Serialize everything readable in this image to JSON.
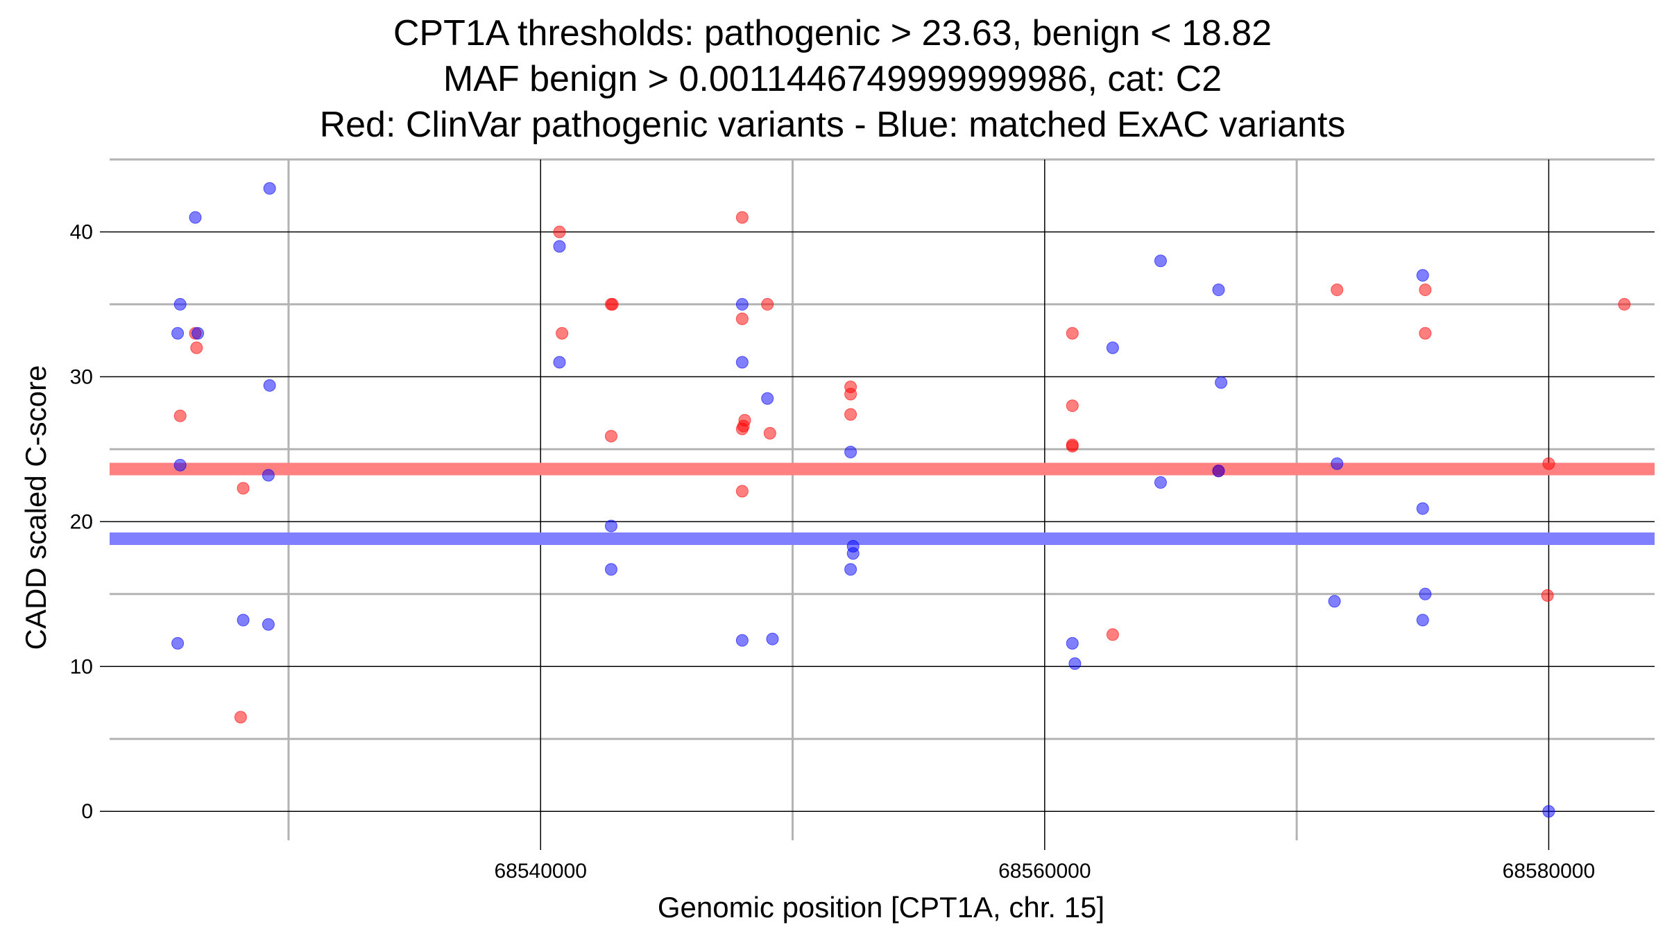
{
  "chart_data": {
    "type": "scatter",
    "title_lines": [
      "CPT1A thresholds: pathogenic > 23.63, benign < 18.82",
      "MAF benign > 0.0011446749999999986, cat: C2",
      "Red: ClinVar pathogenic variants - Blue: matched ExAC variants"
    ],
    "xlabel": "Genomic position [CPT1A, chr. 15]",
    "ylabel": "CADD scaled C-score",
    "xlim": [
      68522900,
      68584200
    ],
    "ylim": [
      -2,
      45
    ],
    "x_ticks": [
      68540000,
      68560000,
      68580000
    ],
    "x_tick_labels": [
      "68540000",
      "68560000",
      "68580000"
    ],
    "x_minor_grid": [
      68530000,
      68550000,
      68570000
    ],
    "y_ticks": [
      0,
      10,
      20,
      30,
      40
    ],
    "y_tick_labels": [
      "0",
      "10",
      "20",
      "30",
      "40"
    ],
    "y_minor_grid": [
      5,
      15,
      25,
      35,
      45
    ],
    "grid": true,
    "thresholds": [
      {
        "name": "pathogenic",
        "value": 23.63,
        "color": "#ff8080"
      },
      {
        "name": "benign",
        "value": 18.82,
        "color": "#8080ff"
      }
    ],
    "series": [
      {
        "color": "#ff0000",
        "points": [
          [
            68525700,
            27.3
          ],
          [
            68526300,
            33
          ],
          [
            68526350,
            32
          ],
          [
            68528200,
            22.3
          ],
          [
            68528100,
            6.5
          ],
          [
            68540750,
            40
          ],
          [
            68540850,
            33
          ],
          [
            68542800,
            25.9
          ],
          [
            68542800,
            35
          ],
          [
            68542850,
            35
          ],
          [
            68548000,
            41
          ],
          [
            68548000,
            34
          ],
          [
            68548000,
            26.4
          ],
          [
            68548050,
            26.6
          ],
          [
            68548100,
            27
          ],
          [
            68548000,
            22.1
          ],
          [
            68549000,
            35
          ],
          [
            68549100,
            26.1
          ],
          [
            68552300,
            29.3
          ],
          [
            68552300,
            28.8
          ],
          [
            68552300,
            27.4
          ],
          [
            68561100,
            33
          ],
          [
            68561100,
            28
          ],
          [
            68561100,
            25.3
          ],
          [
            68561100,
            25.2
          ],
          [
            68562700,
            12.2
          ],
          [
            68566900,
            23.5
          ],
          [
            68571600,
            36
          ],
          [
            68575100,
            36
          ],
          [
            68575100,
            33
          ],
          [
            68580000,
            24
          ],
          [
            68579950,
            14.9
          ],
          [
            68583000,
            35
          ]
        ]
      },
      {
        "color": "#0000ff",
        "points": [
          [
            68525700,
            35
          ],
          [
            68525600,
            33
          ],
          [
            68526400,
            33
          ],
          [
            68526300,
            41
          ],
          [
            68525700,
            23.9
          ],
          [
            68525600,
            11.6
          ],
          [
            68528200,
            13.2
          ],
          [
            68529250,
            43
          ],
          [
            68529250,
            29.4
          ],
          [
            68529200,
            23.2
          ],
          [
            68529200,
            12.9
          ],
          [
            68540750,
            39
          ],
          [
            68540750,
            31
          ],
          [
            68542800,
            19.7
          ],
          [
            68542800,
            16.7
          ],
          [
            68548000,
            35
          ],
          [
            68548000,
            31
          ],
          [
            68549000,
            28.5
          ],
          [
            68548000,
            11.8
          ],
          [
            68549200,
            11.9
          ],
          [
            68552300,
            24.8
          ],
          [
            68552400,
            18.3
          ],
          [
            68552400,
            17.8
          ],
          [
            68552300,
            16.7
          ],
          [
            68562700,
            32
          ],
          [
            68561100,
            11.6
          ],
          [
            68561200,
            10.2
          ],
          [
            68564600,
            38
          ],
          [
            68564600,
            22.7
          ],
          [
            68566900,
            36
          ],
          [
            68567000,
            29.6
          ],
          [
            68566900,
            23.5
          ],
          [
            68571600,
            24
          ],
          [
            68571500,
            14.5
          ],
          [
            68575000,
            37
          ],
          [
            68575000,
            20.9
          ],
          [
            68575100,
            15
          ],
          [
            68575000,
            13.2
          ],
          [
            68580000,
            0
          ]
        ]
      }
    ]
  }
}
